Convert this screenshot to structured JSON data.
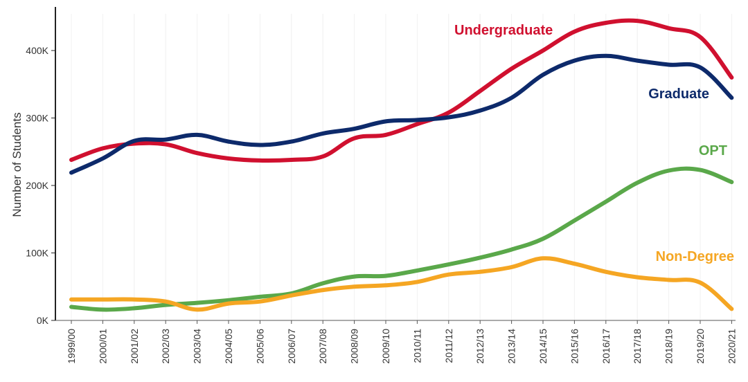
{
  "chart_data": {
    "type": "line",
    "title": "",
    "xlabel": "",
    "ylabel": "Number of Students",
    "ylim": [
      0,
      460000
    ],
    "yticks": [
      {
        "value": 0,
        "label": "0K"
      },
      {
        "value": 100000,
        "label": "100K"
      },
      {
        "value": 200000,
        "label": "200K"
      },
      {
        "value": 300000,
        "label": "300K"
      },
      {
        "value": 400000,
        "label": "400K"
      }
    ],
    "grid": "vertical",
    "legend": "inline labels at line ends",
    "categories": [
      "1999/00",
      "2000/01",
      "2001/02",
      "2002/03",
      "2003/04",
      "2004/05",
      "2005/06",
      "2006/07",
      "2007/08",
      "2008/09",
      "2009/10",
      "2010/11",
      "2011/12",
      "2012/13",
      "2013/14",
      "2014/15",
      "2015/16",
      "2016/17",
      "2017/18",
      "2018/19",
      "2019/20",
      "2020/21"
    ],
    "series": [
      {
        "name": "Undergraduate",
        "color": "#d0102f",
        "values": [
          238000,
          255000,
          262000,
          261000,
          248000,
          240000,
          237000,
          238000,
          243000,
          270000,
          275000,
          291000,
          308000,
          340000,
          373000,
          400000,
          428000,
          441000,
          444000,
          433000,
          420000,
          360000
        ]
      },
      {
        "name": "Graduate",
        "color": "#0d2a6b",
        "values": [
          219000,
          240000,
          266000,
          268000,
          275000,
          265000,
          260000,
          265000,
          277000,
          284000,
          295000,
          297000,
          301000,
          311000,
          330000,
          364000,
          385000,
          392000,
          385000,
          379000,
          375000,
          330000
        ]
      },
      {
        "name": "OPT",
        "color": "#5aa84a",
        "values": [
          20000,
          16000,
          18000,
          23000,
          26000,
          30000,
          35000,
          40000,
          55000,
          65000,
          66000,
          74000,
          83000,
          93000,
          105000,
          121000,
          148000,
          176000,
          204000,
          222000,
          223000,
          205000
        ]
      },
      {
        "name": "Non-Degree",
        "color": "#f5a623",
        "values": [
          31000,
          31000,
          31000,
          28000,
          16000,
          25000,
          28000,
          37000,
          45000,
          50000,
          52000,
          57000,
          68000,
          72000,
          79000,
          92000,
          84000,
          72000,
          64000,
          60000,
          56000,
          17000
        ]
      }
    ]
  }
}
